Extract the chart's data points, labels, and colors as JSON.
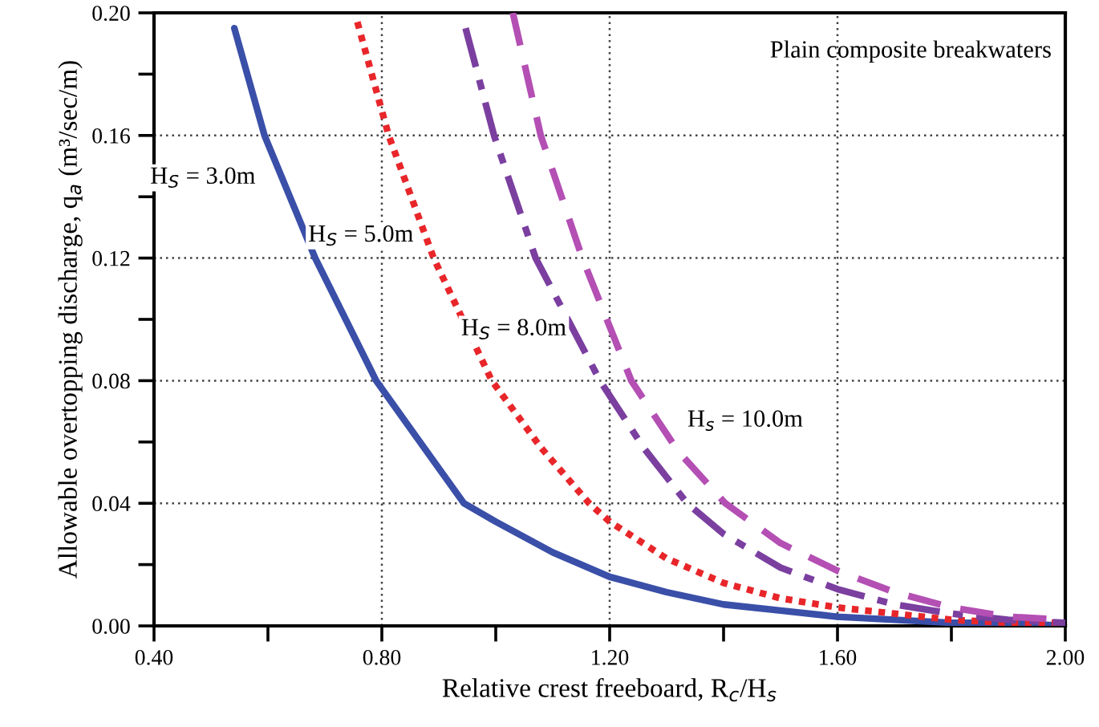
{
  "chart_data": {
    "type": "line",
    "xlabel": "Relative crest freeboard, R$_{c}$/H$_{s}$",
    "ylabel": "Allowable overtopping discharge, q$_{a}$ (m³/sec/m)",
    "xlim": [
      0.4,
      2.0
    ],
    "ylim": [
      0.0,
      0.2
    ],
    "xticks": [
      {
        "value": 0.4,
        "label": "0.40"
      },
      {
        "value": 0.6,
        "label": null
      },
      {
        "value": 0.8,
        "label": "0.80"
      },
      {
        "value": 1.0,
        "label": null
      },
      {
        "value": 1.2,
        "label": "1.20"
      },
      {
        "value": 1.4,
        "label": null
      },
      {
        "value": 1.6,
        "label": "1.60"
      },
      {
        "value": 1.8,
        "label": null
      },
      {
        "value": 2.0,
        "label": "2.00"
      }
    ],
    "yticks": [
      {
        "value": 0.0,
        "label": "0.00"
      },
      {
        "value": 0.02,
        "label": null
      },
      {
        "value": 0.04,
        "label": "0.04"
      },
      {
        "value": 0.06,
        "label": null
      },
      {
        "value": 0.08,
        "label": "0.08"
      },
      {
        "value": 0.1,
        "label": null
      },
      {
        "value": 0.12,
        "label": "0.12"
      },
      {
        "value": 0.14,
        "label": null
      },
      {
        "value": 0.16,
        "label": "0.16"
      },
      {
        "value": 0.18,
        "label": null
      },
      {
        "value": 0.2,
        "label": "0.20"
      }
    ],
    "grid": true,
    "legend": false,
    "marker": "none",
    "series": [
      {
        "name": "H$_{S}$ = 3.0m",
        "color": "#3a4fa8",
        "line_style": "solid",
        "x": [
          0.541,
          0.594,
          0.683,
          0.79,
          0.944,
          1.0,
          1.1,
          1.2,
          1.3,
          1.4,
          1.5,
          1.6,
          1.7,
          1.8,
          1.9,
          2.0
        ],
        "values": [
          0.195,
          0.16,
          0.12,
          0.08,
          0.04,
          0.034,
          0.024,
          0.016,
          0.011,
          0.007,
          0.005,
          0.003,
          0.002,
          0.001,
          0.001,
          0.0
        ]
      },
      {
        "name": "H$_{S}$ = 5.0m",
        "color": "#e8262a",
        "line_style": "dotted",
        "x": [
          0.757,
          0.812,
          0.891,
          0.993,
          1.08,
          1.164,
          1.2,
          1.3,
          1.4,
          1.5,
          1.6,
          1.7,
          1.8,
          1.9,
          2.0
        ],
        "values": [
          0.197,
          0.16,
          0.12,
          0.08,
          0.058,
          0.04,
          0.034,
          0.022,
          0.014,
          0.009,
          0.006,
          0.004,
          0.002,
          0.001,
          0.001
        ]
      },
      {
        "name": "H$_{S}$ = 8.0m",
        "color": "#7b3fa0",
        "line_style": "dashdot",
        "x": [
          0.947,
          0.997,
          1.07,
          1.183,
          1.26,
          1.336,
          1.4,
          1.5,
          1.6,
          1.7,
          1.8,
          1.9,
          2.0
        ],
        "values": [
          0.195,
          0.16,
          0.12,
          0.08,
          0.058,
          0.04,
          0.03,
          0.019,
          0.012,
          0.007,
          0.004,
          0.002,
          0.001
        ]
      },
      {
        "name": "H$_{s}$ = 10.0m",
        "color": "#b44fb4",
        "line_style": "dashed",
        "x": [
          1.03,
          1.079,
          1.152,
          1.238,
          1.32,
          1.403,
          1.5,
          1.6,
          1.7,
          1.8,
          1.9,
          2.0
        ],
        "values": [
          0.2,
          0.16,
          0.12,
          0.08,
          0.057,
          0.04,
          0.027,
          0.018,
          0.011,
          0.006,
          0.003,
          0.002
        ]
      }
    ],
    "annotations": [
      "Plain composite breakwaters"
    ]
  }
}
